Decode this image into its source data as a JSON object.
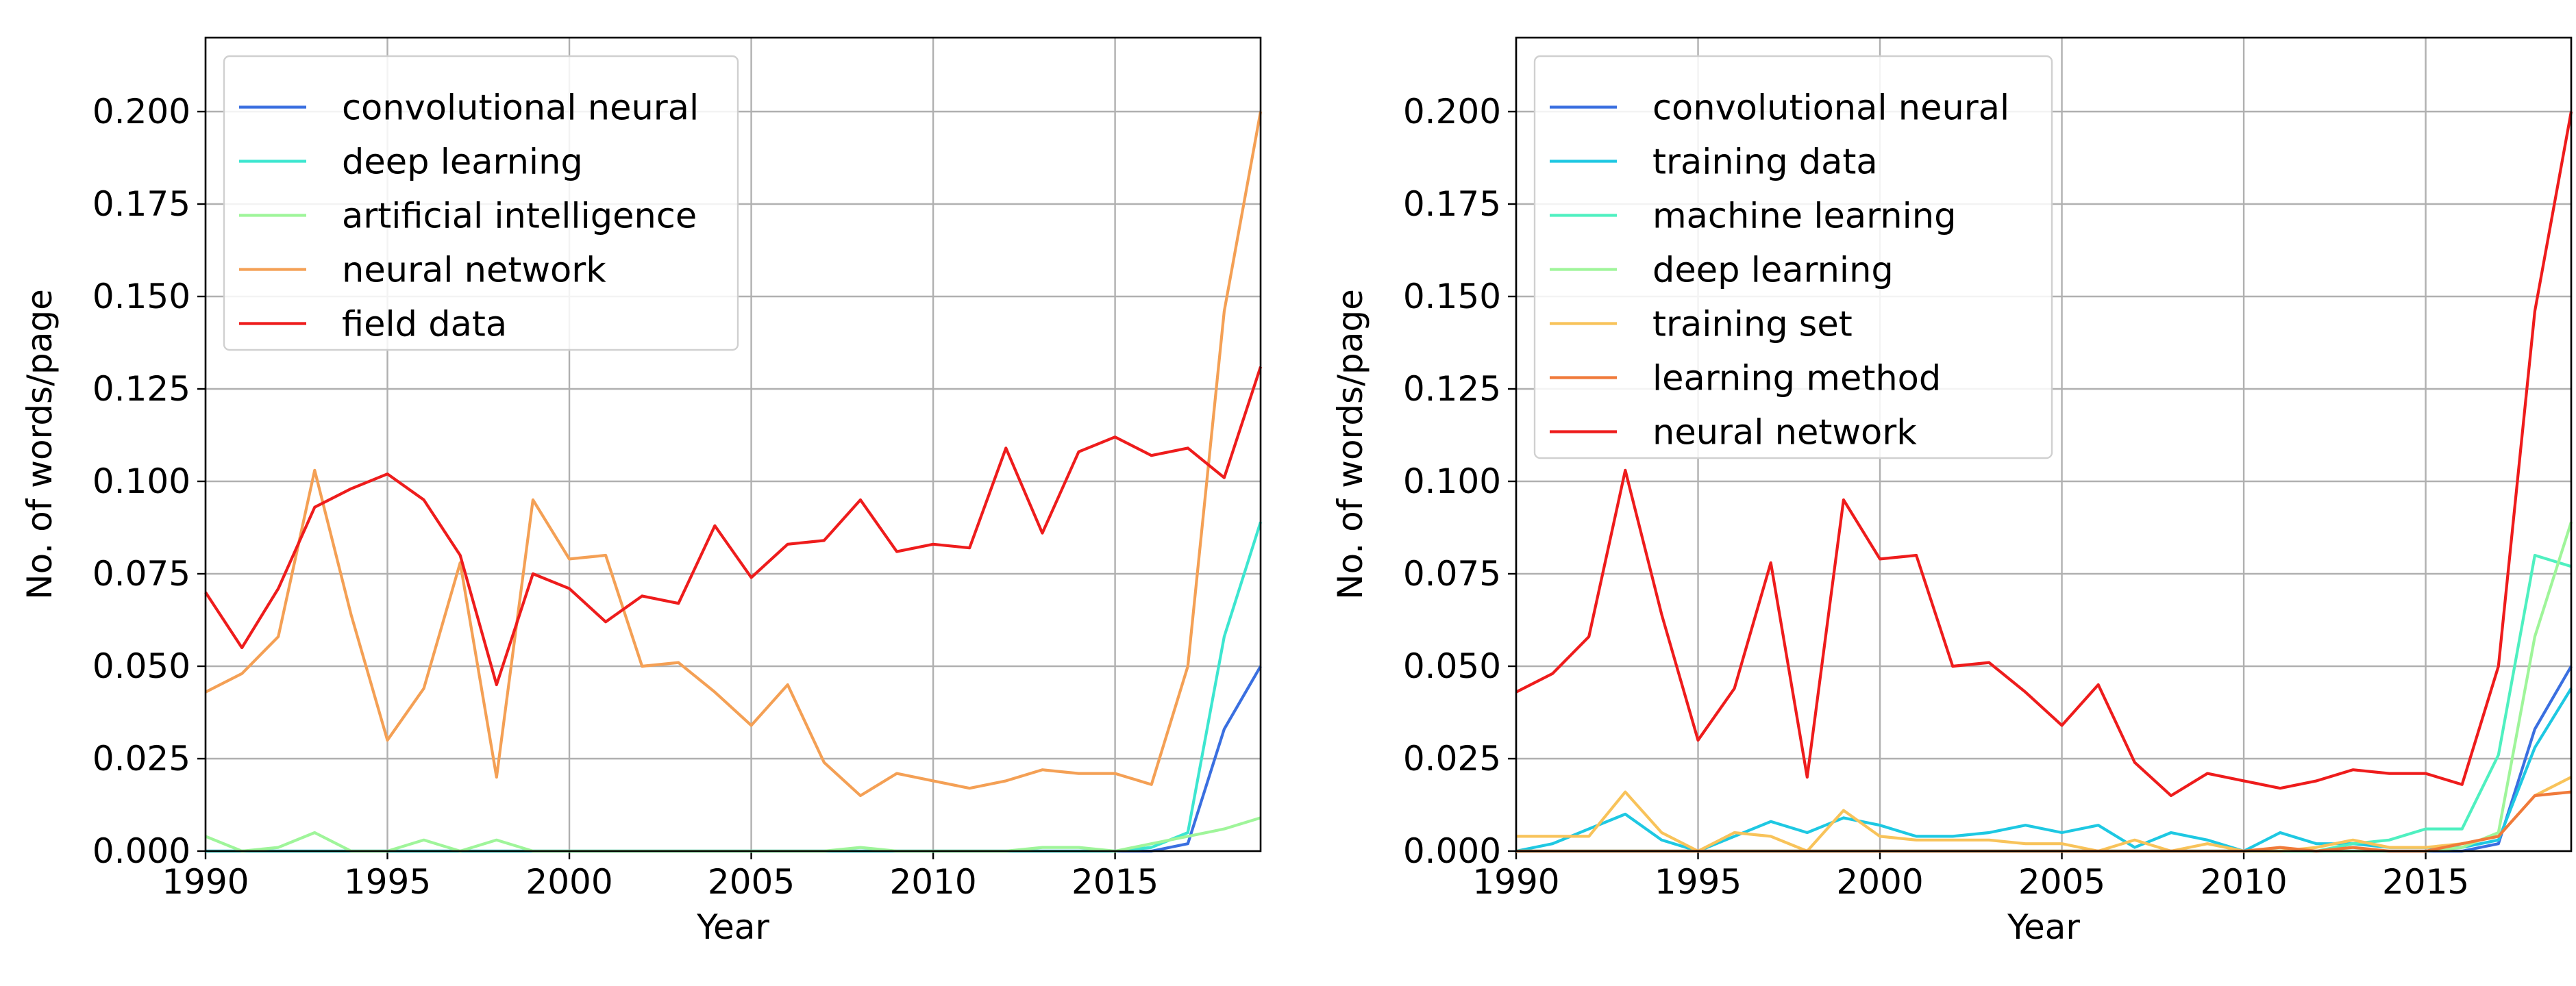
{
  "chart_data": [
    {
      "type": "line",
      "title": "",
      "xlabel": "Year",
      "ylabel": "No. of words/page",
      "xlim": [
        1990,
        2019
      ],
      "ylim": [
        0,
        0.22
      ],
      "grid": true,
      "legend": "top-left",
      "x_ticks": [
        1990,
        1995,
        2000,
        2005,
        2010,
        2015
      ],
      "x_tick_labels": [
        "1990",
        "1995",
        "2000",
        "2005",
        "2010",
        "2015"
      ],
      "y_ticks": [
        0,
        0.025,
        0.05,
        0.075,
        0.1,
        0.125,
        0.15,
        0.175,
        0.2
      ],
      "y_tick_labels": [
        "0.000",
        "0.025",
        "0.050",
        "0.075",
        "0.100",
        "0.125",
        "0.150",
        "0.175",
        "0.200"
      ],
      "x": [
        1990,
        1991,
        1992,
        1993,
        1994,
        1995,
        1996,
        1997,
        1998,
        1999,
        2000,
        2001,
        2002,
        2003,
        2004,
        2005,
        2006,
        2007,
        2008,
        2009,
        2010,
        2011,
        2012,
        2013,
        2014,
        2015,
        2016,
        2017,
        2018,
        2019
      ],
      "series": [
        {
          "name": "convolutional neural",
          "color": "#3a6fe0",
          "values": [
            0,
            0,
            0,
            0,
            0,
            0,
            0,
            0,
            0,
            0,
            0,
            0,
            0,
            0,
            0,
            0,
            0,
            0,
            0,
            0,
            0,
            0,
            0,
            0,
            0,
            0,
            0,
            0.002,
            0.033,
            0.05
          ]
        },
        {
          "name": "deep learning",
          "color": "#3de6d0",
          "values": [
            0,
            0,
            0,
            0,
            0,
            0,
            0,
            0,
            0,
            0,
            0,
            0,
            0,
            0,
            0,
            0,
            0,
            0,
            0,
            0,
            0,
            0,
            0,
            0,
            0,
            0,
            0.001,
            0.005,
            0.058,
            0.089
          ]
        },
        {
          "name": "artificial intelligence",
          "color": "#9ff59a",
          "values": [
            0.004,
            0,
            0.001,
            0.005,
            0,
            0,
            0.003,
            0,
            0.003,
            0,
            0,
            0,
            0,
            0,
            0,
            0,
            0,
            0,
            0.001,
            0,
            0,
            0,
            0,
            0.001,
            0.001,
            0,
            0.002,
            0.004,
            0.006,
            0.009
          ]
        },
        {
          "name": "neural network",
          "color": "#f4a055",
          "values": [
            0.043,
            0.048,
            0.058,
            0.103,
            0.064,
            0.03,
            0.044,
            0.078,
            0.02,
            0.095,
            0.079,
            0.08,
            0.05,
            0.051,
            0.043,
            0.034,
            0.045,
            0.024,
            0.015,
            0.021,
            0.019,
            0.017,
            0.019,
            0.022,
            0.021,
            0.021,
            0.018,
            0.05,
            0.146,
            0.2
          ]
        },
        {
          "name": "field data",
          "color": "#ee1c1c",
          "values": [
            0.07,
            0.055,
            0.071,
            0.093,
            0.098,
            0.102,
            0.095,
            0.08,
            0.045,
            0.075,
            0.071,
            0.062,
            0.069,
            0.067,
            0.088,
            0.074,
            0.083,
            0.084,
            0.095,
            0.081,
            0.083,
            0.082,
            0.109,
            0.086,
            0.108,
            0.112,
            0.107,
            0.109,
            0.101,
            0.131
          ]
        }
      ]
    },
    {
      "type": "line",
      "title": "",
      "xlabel": "Year",
      "ylabel": "No. of words/page",
      "xlim": [
        1990,
        2019
      ],
      "ylim": [
        0,
        0.22
      ],
      "grid": true,
      "legend": "top-left",
      "x_ticks": [
        1990,
        1995,
        2000,
        2005,
        2010,
        2015
      ],
      "x_tick_labels": [
        "1990",
        "1995",
        "2000",
        "2005",
        "2010",
        "2015"
      ],
      "y_ticks": [
        0,
        0.025,
        0.05,
        0.075,
        0.1,
        0.125,
        0.15,
        0.175,
        0.2
      ],
      "y_tick_labels": [
        "0.000",
        "0.025",
        "0.050",
        "0.075",
        "0.100",
        "0.125",
        "0.150",
        "0.175",
        "0.200"
      ],
      "x": [
        1990,
        1991,
        1992,
        1993,
        1994,
        1995,
        1996,
        1997,
        1998,
        1999,
        2000,
        2001,
        2002,
        2003,
        2004,
        2005,
        2006,
        2007,
        2008,
        2009,
        2010,
        2011,
        2012,
        2013,
        2014,
        2015,
        2016,
        2017,
        2018,
        2019
      ],
      "series": [
        {
          "name": "convolutional neural",
          "color": "#3a6fe0",
          "values": [
            0,
            0,
            0,
            0,
            0,
            0,
            0,
            0,
            0,
            0,
            0,
            0,
            0,
            0,
            0,
            0,
            0,
            0,
            0,
            0,
            0,
            0,
            0,
            0,
            0,
            0,
            0,
            0.002,
            0.033,
            0.05
          ]
        },
        {
          "name": "training data",
          "color": "#1ec8e2",
          "values": [
            0,
            0.002,
            0.006,
            0.01,
            0.003,
            0,
            0.004,
            0.008,
            0.005,
            0.009,
            0.007,
            0.004,
            0.004,
            0.005,
            0.007,
            0.005,
            0.007,
            0.001,
            0.005,
            0.003,
            0,
            0.005,
            0.002,
            0.002,
            0.001,
            0.001,
            0.001,
            0.003,
            0.028,
            0.044
          ]
        },
        {
          "name": "machine learning",
          "color": "#4ff0c0",
          "values": [
            0,
            0,
            0,
            0,
            0,
            0,
            0,
            0,
            0,
            0,
            0,
            0,
            0,
            0,
            0,
            0,
            0,
            0,
            0,
            0,
            0,
            0,
            0,
            0.002,
            0.003,
            0.006,
            0.006,
            0.026,
            0.08,
            0.077
          ]
        },
        {
          "name": "deep learning",
          "color": "#9ff59a",
          "values": [
            0,
            0,
            0,
            0,
            0,
            0,
            0,
            0,
            0,
            0,
            0,
            0,
            0,
            0,
            0,
            0,
            0,
            0,
            0,
            0,
            0,
            0,
            0,
            0,
            0,
            0,
            0.001,
            0.005,
            0.058,
            0.089
          ]
        },
        {
          "name": "training set",
          "color": "#f8c35a",
          "values": [
            0.004,
            0.004,
            0.004,
            0.016,
            0.005,
            0,
            0.005,
            0.004,
            0,
            0.011,
            0.004,
            0.003,
            0.003,
            0.003,
            0.002,
            0.002,
            0,
            0.003,
            0,
            0.002,
            0,
            0,
            0.001,
            0.003,
            0.001,
            0.001,
            0.002,
            0.004,
            0.015,
            0.02
          ]
        },
        {
          "name": "learning method",
          "color": "#f07a3a",
          "values": [
            0,
            0,
            0,
            0,
            0,
            0,
            0,
            0,
            0,
            0,
            0,
            0,
            0,
            0,
            0,
            0,
            0,
            0,
            0,
            0,
            0,
            0.001,
            0,
            0.001,
            0,
            0,
            0.002,
            0.004,
            0.015,
            0.016
          ]
        },
        {
          "name": "neural network",
          "color": "#ee1c1c",
          "values": [
            0.043,
            0.048,
            0.058,
            0.103,
            0.064,
            0.03,
            0.044,
            0.078,
            0.02,
            0.095,
            0.079,
            0.08,
            0.05,
            0.051,
            0.043,
            0.034,
            0.045,
            0.024,
            0.015,
            0.021,
            0.019,
            0.017,
            0.019,
            0.022,
            0.021,
            0.021,
            0.018,
            0.05,
            0.146,
            0.2
          ]
        }
      ]
    }
  ]
}
